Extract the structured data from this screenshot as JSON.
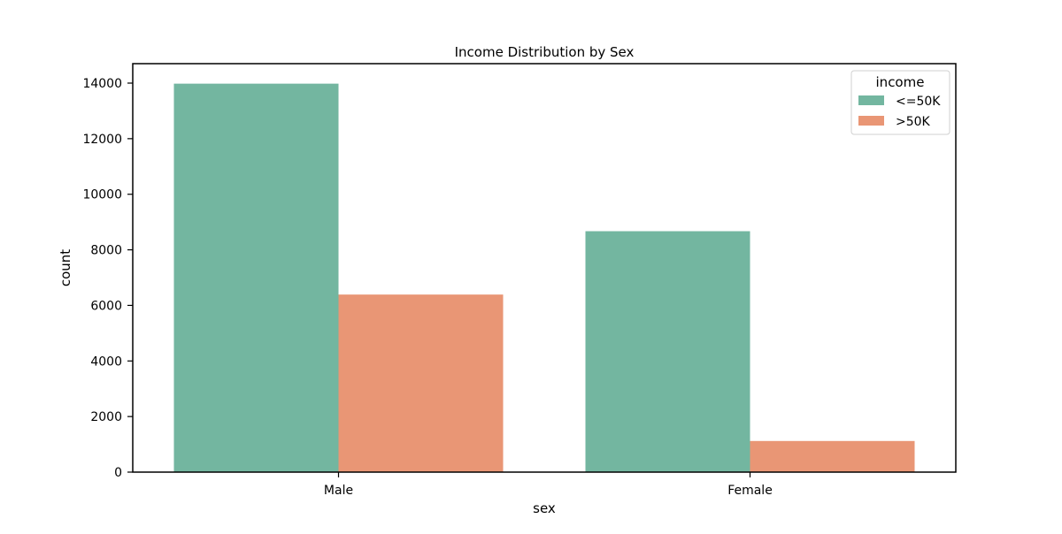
{
  "chart_data": {
    "type": "bar",
    "title": "Income Distribution by Sex",
    "xlabel": "sex",
    "ylabel": "count",
    "categories": [
      "Male",
      "Female"
    ],
    "series": [
      {
        "name": "<=50K",
        "values": [
          13980,
          8670
        ],
        "color": "#73b6a0"
      },
      {
        "name": ">50K",
        "values": [
          6390,
          1120
        ],
        "color": "#e99675"
      }
    ],
    "ylim": [
      0,
      14700
    ],
    "yticks": [
      0,
      2000,
      4000,
      6000,
      8000,
      10000,
      12000,
      14000
    ],
    "ytick_labels": [
      "0",
      "2000",
      "4000",
      "6000",
      "8000",
      "10000",
      "12000",
      "14000"
    ],
    "grid": false,
    "legend": {
      "title": "income",
      "placement": "top-right"
    }
  }
}
